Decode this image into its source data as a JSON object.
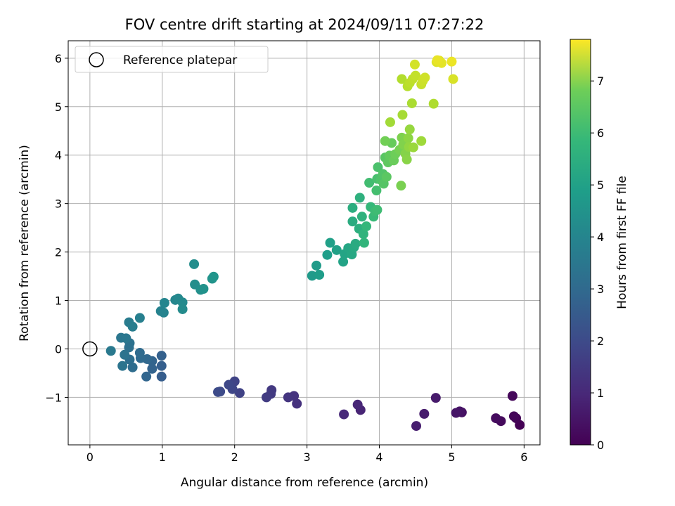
{
  "chart_data": {
    "type": "scatter",
    "title": "FOV centre drift starting at 2024/09/11 07:27:22",
    "xlabel": "Angular distance from reference (arcmin)",
    "ylabel": "Rotation from reference (arcmin)",
    "xlim": [
      -0.3,
      6.22
    ],
    "ylim": [
      -1.98,
      6.36
    ],
    "xticks": [
      0,
      1,
      2,
      3,
      4,
      5,
      6
    ],
    "yticks": [
      -1,
      0,
      1,
      2,
      3,
      4,
      5,
      6
    ],
    "xtick_labels": [
      "0",
      "1",
      "2",
      "3",
      "4",
      "5",
      "6"
    ],
    "ytick_labels": [
      "−1",
      "0",
      "1",
      "2",
      "3",
      "4",
      "5",
      "6"
    ],
    "grid": true,
    "colormap": "viridis",
    "colorbar": {
      "label": "Hours from first FF file",
      "range": [
        0,
        7.8
      ],
      "ticks": [
        0,
        1,
        2,
        3,
        4,
        5,
        6,
        7
      ],
      "tick_labels": [
        "0",
        "1",
        "2",
        "3",
        "4",
        "5",
        "6",
        "7"
      ]
    },
    "legend": {
      "position": "top-left",
      "entries": [
        {
          "label": "Reference platepar",
          "marker": "open-circle",
          "x": 0,
          "y": 0
        }
      ]
    },
    "points": [
      {
        "x": 5.94,
        "y": -1.57,
        "c": 0.0
      },
      {
        "x": 5.89,
        "y": -1.43,
        "c": 0.05
      },
      {
        "x": 5.86,
        "y": -1.39,
        "c": 0.1
      },
      {
        "x": 5.84,
        "y": -0.97,
        "c": 0.15
      },
      {
        "x": 5.68,
        "y": -1.49,
        "c": 0.2
      },
      {
        "x": 5.61,
        "y": -1.43,
        "c": 0.25
      },
      {
        "x": 5.14,
        "y": -1.31,
        "c": 0.35
      },
      {
        "x": 5.11,
        "y": -1.29,
        "c": 0.4
      },
      {
        "x": 5.06,
        "y": -1.32,
        "c": 0.45
      },
      {
        "x": 4.78,
        "y": -1.01,
        "c": 0.55
      },
      {
        "x": 4.62,
        "y": -1.34,
        "c": 0.6
      },
      {
        "x": 4.51,
        "y": -1.59,
        "c": 0.65
      },
      {
        "x": 3.74,
        "y": -1.26,
        "c": 0.8
      },
      {
        "x": 3.7,
        "y": -1.15,
        "c": 0.85
      },
      {
        "x": 3.51,
        "y": -1.35,
        "c": 0.9
      },
      {
        "x": 2.86,
        "y": -1.13,
        "c": 1.1
      },
      {
        "x": 2.82,
        "y": -0.97,
        "c": 1.15
      },
      {
        "x": 2.74,
        "y": -1.0,
        "c": 1.2
      },
      {
        "x": 2.51,
        "y": -0.85,
        "c": 1.3
      },
      {
        "x": 2.5,
        "y": -0.93,
        "c": 1.35
      },
      {
        "x": 2.44,
        "y": -1.0,
        "c": 1.4
      },
      {
        "x": 2.07,
        "y": -0.91,
        "c": 1.55
      },
      {
        "x": 2.0,
        "y": -0.67,
        "c": 1.6
      },
      {
        "x": 1.97,
        "y": -0.83,
        "c": 1.65
      },
      {
        "x": 1.92,
        "y": -0.74,
        "c": 1.7
      },
      {
        "x": 1.8,
        "y": -0.88,
        "c": 1.75
      },
      {
        "x": 1.77,
        "y": -0.89,
        "c": 1.8
      },
      {
        "x": 0.99,
        "y": -0.57,
        "c": 2.3
      },
      {
        "x": 0.99,
        "y": -0.35,
        "c": 2.35
      },
      {
        "x": 0.99,
        "y": -0.14,
        "c": 2.4
      },
      {
        "x": 0.86,
        "y": -0.41,
        "c": 2.45
      },
      {
        "x": 0.86,
        "y": -0.25,
        "c": 2.5
      },
      {
        "x": 0.78,
        "y": -0.57,
        "c": 2.55
      },
      {
        "x": 0.79,
        "y": -0.21,
        "c": 2.6
      },
      {
        "x": 0.7,
        "y": -0.19,
        "c": 2.65
      },
      {
        "x": 0.69,
        "y": -0.08,
        "c": 2.7
      },
      {
        "x": 0.59,
        "y": -0.38,
        "c": 2.75
      },
      {
        "x": 0.55,
        "y": -0.22,
        "c": 2.8
      },
      {
        "x": 0.54,
        "y": 0.03,
        "c": 2.85
      },
      {
        "x": 0.55,
        "y": 0.12,
        "c": 2.9
      },
      {
        "x": 0.48,
        "y": -0.12,
        "c": 2.95
      },
      {
        "x": 0.45,
        "y": -0.35,
        "c": 3.0
      },
      {
        "x": 0.43,
        "y": 0.23,
        "c": 3.05
      },
      {
        "x": 0.5,
        "y": 0.22,
        "c": 3.1
      },
      {
        "x": 0.29,
        "y": -0.04,
        "c": 3.15
      },
      {
        "x": 0.54,
        "y": 0.55,
        "c": 3.25
      },
      {
        "x": 0.59,
        "y": 0.46,
        "c": 3.3
      },
      {
        "x": 0.69,
        "y": 0.64,
        "c": 3.35
      },
      {
        "x": 0.98,
        "y": 0.78,
        "c": 3.45
      },
      {
        "x": 1.02,
        "y": 0.75,
        "c": 3.5
      },
      {
        "x": 1.03,
        "y": 0.95,
        "c": 3.55
      },
      {
        "x": 1.18,
        "y": 1.01,
        "c": 3.6
      },
      {
        "x": 1.22,
        "y": 1.04,
        "c": 3.65
      },
      {
        "x": 1.28,
        "y": 0.96,
        "c": 3.7
      },
      {
        "x": 1.28,
        "y": 0.82,
        "c": 3.75
      },
      {
        "x": 1.44,
        "y": 1.75,
        "c": 3.8
      },
      {
        "x": 1.45,
        "y": 1.33,
        "c": 3.85
      },
      {
        "x": 1.53,
        "y": 1.22,
        "c": 3.9
      },
      {
        "x": 1.57,
        "y": 1.24,
        "c": 3.95
      },
      {
        "x": 1.69,
        "y": 1.45,
        "c": 4.0
      },
      {
        "x": 1.71,
        "y": 1.49,
        "c": 4.05
      },
      {
        "x": 3.07,
        "y": 1.51,
        "c": 4.2
      },
      {
        "x": 3.13,
        "y": 1.72,
        "c": 4.25
      },
      {
        "x": 3.17,
        "y": 1.53,
        "c": 4.3
      },
      {
        "x": 3.28,
        "y": 1.94,
        "c": 4.35
      },
      {
        "x": 3.32,
        "y": 2.19,
        "c": 4.4
      },
      {
        "x": 3.41,
        "y": 2.04,
        "c": 4.45
      },
      {
        "x": 3.5,
        "y": 1.8,
        "c": 4.5
      },
      {
        "x": 3.52,
        "y": 1.96,
        "c": 4.55
      },
      {
        "x": 3.57,
        "y": 2.08,
        "c": 4.6
      },
      {
        "x": 3.62,
        "y": 1.95,
        "c": 4.65
      },
      {
        "x": 3.65,
        "y": 2.1,
        "c": 4.7
      },
      {
        "x": 3.67,
        "y": 2.17,
        "c": 4.75
      },
      {
        "x": 3.63,
        "y": 2.63,
        "c": 4.8
      },
      {
        "x": 3.63,
        "y": 2.91,
        "c": 4.85
      },
      {
        "x": 3.72,
        "y": 2.48,
        "c": 4.9
      },
      {
        "x": 3.73,
        "y": 3.12,
        "c": 4.95
      },
      {
        "x": 3.76,
        "y": 2.73,
        "c": 5.0
      },
      {
        "x": 3.78,
        "y": 2.37,
        "c": 5.05
      },
      {
        "x": 3.79,
        "y": 2.19,
        "c": 5.1
      },
      {
        "x": 3.82,
        "y": 2.53,
        "c": 5.15
      },
      {
        "x": 3.88,
        "y": 2.93,
        "c": 5.2
      },
      {
        "x": 3.92,
        "y": 2.73,
        "c": 5.25
      },
      {
        "x": 3.94,
        "y": 2.84,
        "c": 5.3
      },
      {
        "x": 3.97,
        "y": 2.87,
        "c": 5.35
      },
      {
        "x": 3.86,
        "y": 3.43,
        "c": 5.4
      },
      {
        "x": 3.96,
        "y": 3.27,
        "c": 5.45
      },
      {
        "x": 3.97,
        "y": 3.51,
        "c": 5.5
      },
      {
        "x": 3.98,
        "y": 3.75,
        "c": 5.55
      },
      {
        "x": 4.02,
        "y": 3.49,
        "c": 5.6
      },
      {
        "x": 4.05,
        "y": 3.61,
        "c": 5.65
      },
      {
        "x": 4.06,
        "y": 3.41,
        "c": 5.7
      },
      {
        "x": 4.08,
        "y": 3.95,
        "c": 5.75
      },
      {
        "x": 4.1,
        "y": 3.55,
        "c": 5.8
      },
      {
        "x": 4.12,
        "y": 3.85,
        "c": 5.85
      },
      {
        "x": 4.14,
        "y": 3.99,
        "c": 5.9
      },
      {
        "x": 4.17,
        "y": 4.25,
        "c": 5.95
      },
      {
        "x": 4.2,
        "y": 3.89,
        "c": 6.0
      },
      {
        "x": 4.22,
        "y": 4.02,
        "c": 6.05
      },
      {
        "x": 4.08,
        "y": 4.29,
        "c": 6.1
      },
      {
        "x": 4.28,
        "y": 4.11,
        "c": 6.15
      },
      {
        "x": 4.3,
        "y": 3.37,
        "c": 6.2
      },
      {
        "x": 4.31,
        "y": 4.36,
        "c": 6.25
      },
      {
        "x": 4.33,
        "y": 4.22,
        "c": 6.3
      },
      {
        "x": 4.36,
        "y": 4.03,
        "c": 6.35
      },
      {
        "x": 4.38,
        "y": 3.91,
        "c": 6.4
      },
      {
        "x": 4.4,
        "y": 4.35,
        "c": 6.45
      },
      {
        "x": 4.41,
        "y": 4.17,
        "c": 6.5
      },
      {
        "x": 4.42,
        "y": 4.53,
        "c": 6.55
      },
      {
        "x": 4.47,
        "y": 4.16,
        "c": 6.6
      },
      {
        "x": 4.58,
        "y": 4.29,
        "c": 6.65
      },
      {
        "x": 4.15,
        "y": 4.68,
        "c": 6.7
      },
      {
        "x": 4.32,
        "y": 4.83,
        "c": 6.75
      },
      {
        "x": 4.45,
        "y": 5.07,
        "c": 6.8
      },
      {
        "x": 4.75,
        "y": 5.06,
        "c": 6.85
      },
      {
        "x": 4.31,
        "y": 5.57,
        "c": 6.9
      },
      {
        "x": 4.39,
        "y": 5.42,
        "c": 6.95
      },
      {
        "x": 4.42,
        "y": 5.49,
        "c": 7.0
      },
      {
        "x": 4.46,
        "y": 5.57,
        "c": 7.05
      },
      {
        "x": 4.5,
        "y": 5.64,
        "c": 7.1
      },
      {
        "x": 4.58,
        "y": 5.46,
        "c": 7.15
      },
      {
        "x": 4.6,
        "y": 5.53,
        "c": 7.2
      },
      {
        "x": 4.63,
        "y": 5.6,
        "c": 7.25
      },
      {
        "x": 4.49,
        "y": 5.87,
        "c": 7.3
      },
      {
        "x": 5.02,
        "y": 5.57,
        "c": 7.35
      },
      {
        "x": 4.79,
        "y": 5.92,
        "c": 7.4
      },
      {
        "x": 4.83,
        "y": 5.95,
        "c": 7.45
      },
      {
        "x": 4.86,
        "y": 5.9,
        "c": 7.5
      },
      {
        "x": 4.8,
        "y": 5.96,
        "c": 7.55
      },
      {
        "x": 5.0,
        "y": 5.93,
        "c": 7.6
      }
    ]
  }
}
